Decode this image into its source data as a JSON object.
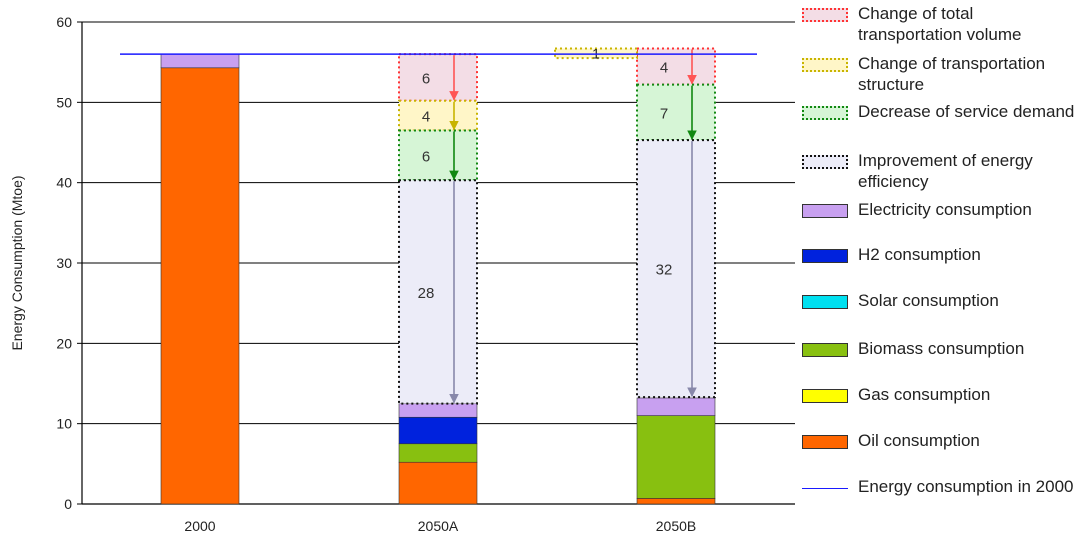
{
  "chart_data": {
    "type": "bar",
    "categories": [
      "2000",
      "2050A",
      "2050B"
    ],
    "ylabel": "Energy Consumption (Mtoe)",
    "ylim": [
      0,
      60
    ],
    "yticks": [
      0,
      10,
      20,
      30,
      40,
      50,
      60
    ],
    "grid": true,
    "legend_position": "right",
    "reference_line": {
      "name": "Energy consumption in 2000",
      "value": 56,
      "color": "#1a1aff"
    },
    "stacks": [
      {
        "category": "2000",
        "components": [
          {
            "name": "Oil consumption",
            "value": 54.3
          },
          {
            "name": "Electricity consumption",
            "value": 1.7
          }
        ]
      },
      {
        "category": "2050A",
        "components": [
          {
            "name": "Oil consumption",
            "value": 5.2
          },
          {
            "name": "Biomass consumption",
            "value": 2.3
          },
          {
            "name": "H2 consumption",
            "value": 3.3
          },
          {
            "name": "Electricity consumption",
            "value": 1.7
          }
        ]
      },
      {
        "category": "2050B",
        "components": [
          {
            "name": "Oil consumption",
            "value": 0.7
          },
          {
            "name": "Biomass consumption",
            "value": 10.3
          },
          {
            "name": "Electricity consumption",
            "value": 2.2
          }
        ]
      }
    ],
    "reductions": [
      {
        "category": "2050A",
        "items": [
          {
            "name": "Change of total transportation volume",
            "from": 56,
            "to": 50.2,
            "label": "6"
          },
          {
            "name": "Change of transportation structure",
            "from": 50.2,
            "to": 46.5,
            "label": "4"
          },
          {
            "name": "Decrease of service demand",
            "from": 46.5,
            "to": 40.3,
            "label": "6"
          },
          {
            "name": "Improvement of energy efficiency",
            "from": 40.3,
            "to": 12.5,
            "label": "28"
          }
        ]
      },
      {
        "category": "2050B",
        "items": [
          {
            "name": "Change of total transportation volume",
            "from": 56.7,
            "to": 52.2,
            "label": "4"
          },
          {
            "name": "Decrease of service demand",
            "from": 52.2,
            "to": 45.3,
            "label": "7"
          },
          {
            "name": "Improvement of energy efficiency",
            "from": 45.3,
            "to": 13.3,
            "label": "32"
          }
        ]
      }
    ],
    "increases": [
      {
        "category": "between 2050A and 2050B",
        "name": "Change of transportation structure",
        "from": 55.5,
        "to": 56.7,
        "label": "1"
      }
    ],
    "legend": [
      {
        "name": "Change of total transportation volume",
        "label": "Change of total transportation volume",
        "style": "dotted",
        "fill": "#f3dde6",
        "stroke": "#ff3333"
      },
      {
        "name": "Change of transportation structure",
        "label": "Change of transportation structure",
        "style": "dotted",
        "fill": "#fff6c8",
        "stroke": "#c8b400"
      },
      {
        "name": "Decrease of service demand",
        "label": "Decrease of service demand",
        "style": "dotted",
        "fill": "#d6f5d6",
        "stroke": "#118811"
      },
      {
        "name": "Improvement of energy efficiency",
        "label": "Improvement of energy efficiency",
        "style": "dotted",
        "fill": "#ececf8",
        "stroke": "#111111"
      },
      {
        "name": "Electricity consumption",
        "label": "Electricity consumption",
        "style": "solid",
        "fill": "#c8a0f0"
      },
      {
        "name": "H2 consumption",
        "label": "H2 consumption",
        "style": "solid",
        "fill": "#0022dd"
      },
      {
        "name": "Solar consumption",
        "label": "Solar  consumption",
        "style": "solid",
        "fill": "#00e0f0"
      },
      {
        "name": "Biomass consumption",
        "label": "Biomass consumption",
        "style": "solid",
        "fill": "#88c010"
      },
      {
        "name": "Gas consumption",
        "label": "Gas consumption",
        "style": "solid",
        "fill": "#ffff00"
      },
      {
        "name": "Oil consumption",
        "label": "Oil consumption",
        "style": "solid",
        "fill": "#ff6600"
      },
      {
        "name": "Energy consumption in 2000",
        "label": "Energy consumption in 2000",
        "style": "line",
        "stroke": "#1a1aff"
      }
    ],
    "colors": {
      "arrow_volume": "#ff5555",
      "arrow_structure": "#c8b400",
      "arrow_service": "#118811",
      "arrow_efficiency": "#8888aa"
    }
  }
}
